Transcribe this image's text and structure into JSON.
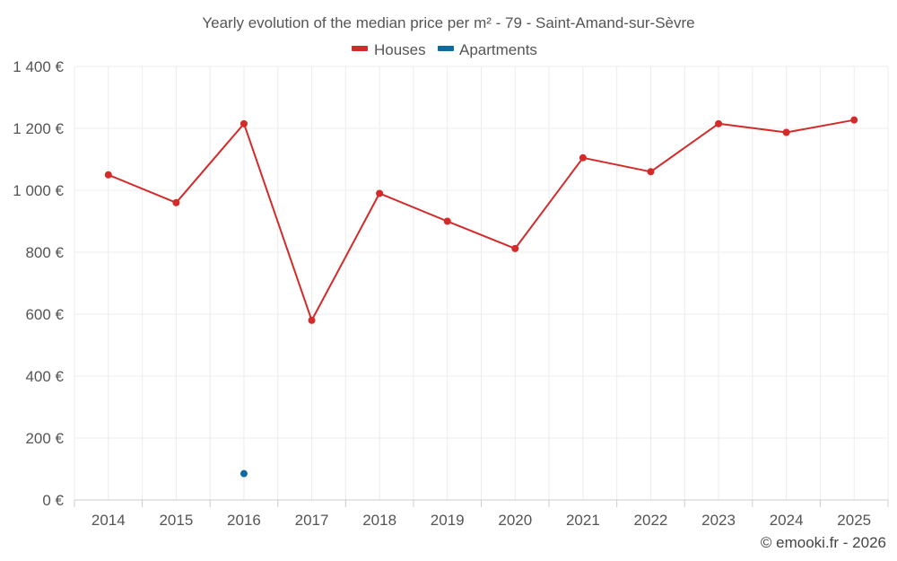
{
  "chart_data": {
    "type": "line",
    "title": "Yearly evolution of the median price per m² - 79 - Saint-Amand-sur-Sèvre",
    "categories": [
      "2014",
      "2015",
      "2016",
      "2017",
      "2018",
      "2019",
      "2020",
      "2021",
      "2022",
      "2023",
      "2024",
      "2025"
    ],
    "y_ticks": [
      0,
      200,
      400,
      600,
      800,
      1000,
      1200,
      1400
    ],
    "y_tick_labels": [
      "0 €",
      "200 €",
      "400 €",
      "600 €",
      "800 €",
      "1 000 €",
      "1 200 €",
      "1 400 €"
    ],
    "ylim": [
      0,
      1400
    ],
    "grid": true,
    "legend_position": "top-center",
    "series": [
      {
        "name": "Houses",
        "color": "#d42a2a",
        "values": [
          1050,
          960,
          1215,
          580,
          990,
          900,
          812,
          1105,
          1060,
          1215,
          1187,
          1227
        ]
      },
      {
        "name": "Apartments",
        "color": "#0e6b9e",
        "values": [
          null,
          null,
          85,
          null,
          null,
          null,
          null,
          null,
          null,
          null,
          null,
          null
        ]
      }
    ]
  },
  "credit": "© emooki.fr - 2026"
}
